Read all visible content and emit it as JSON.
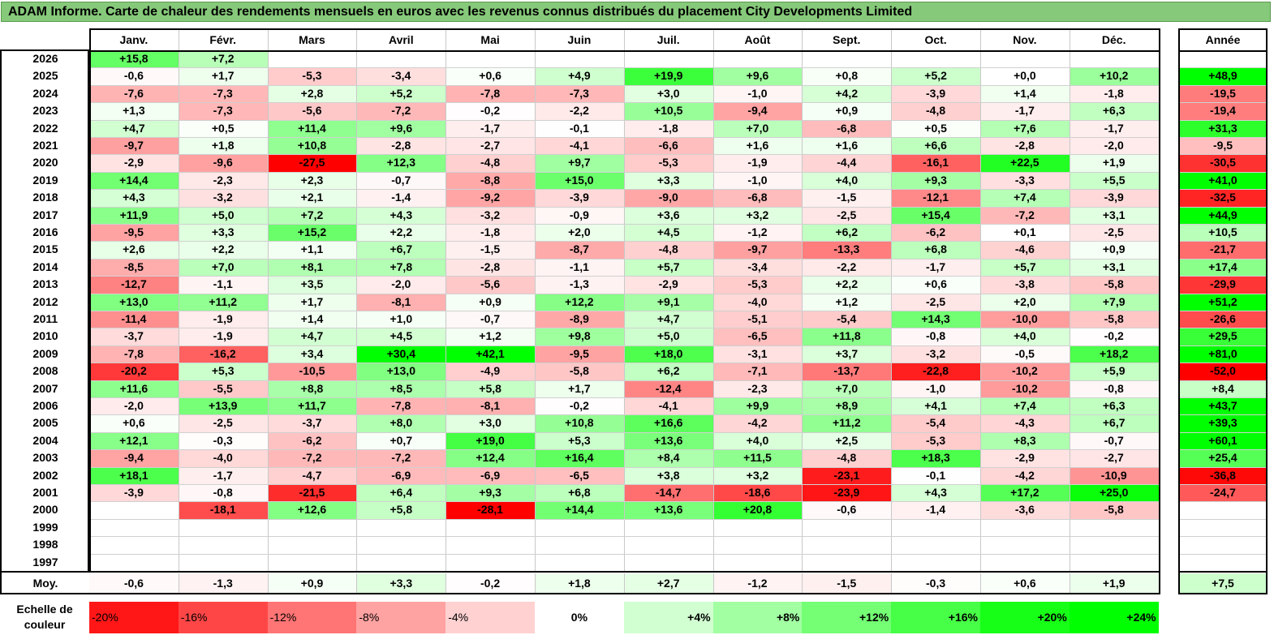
{
  "title": "ADAM Informe. Carte de chaleur des rendements mensuels en euros avec les revenus connus distribués du placement City Developments Limited",
  "chart_data": {
    "type": "heatmap",
    "title": "ADAM Informe. Carte de chaleur des rendements mensuels en euros avec les revenus connus distribués du placement City Developments Limited",
    "months": [
      "Janv.",
      "Févr.",
      "Mars",
      "Avril",
      "Mai",
      "Juin",
      "Juil.",
      "Août",
      "Sept.",
      "Oct.",
      "Nov.",
      "Déc."
    ],
    "year_header": "Année",
    "rows": [
      {
        "year": "2026",
        "values": [
          "+15,8",
          "+7,2",
          "",
          "",
          "",
          "",
          "",
          "",
          "",
          "",
          "",
          ""
        ],
        "annual": ""
      },
      {
        "year": "2025",
        "values": [
          "-0,6",
          "+1,7",
          "-5,3",
          "-3,4",
          "+0,6",
          "+4,9",
          "+19,9",
          "+9,6",
          "+0,8",
          "+5,2",
          "+0,0",
          "+10,2"
        ],
        "annual": "+48,9"
      },
      {
        "year": "2024",
        "values": [
          "-7,6",
          "-7,3",
          "+2,8",
          "+5,2",
          "-7,8",
          "-7,3",
          "+3,0",
          "-1,0",
          "+4,2",
          "-3,9",
          "+1,4",
          "-1,8"
        ],
        "annual": "-19,5"
      },
      {
        "year": "2023",
        "values": [
          "+1,3",
          "-7,3",
          "-5,6",
          "-7,2",
          "-0,2",
          "-2,2",
          "+10,5",
          "-9,4",
          "+0,9",
          "-4,8",
          "-1,7",
          "+6,3"
        ],
        "annual": "-19,4"
      },
      {
        "year": "2022",
        "values": [
          "+4,7",
          "+0,5",
          "+11,4",
          "+9,6",
          "-1,7",
          "-0,1",
          "-1,8",
          "+7,0",
          "-6,8",
          "+0,5",
          "+7,6",
          "-1,7"
        ],
        "annual": "+31,3"
      },
      {
        "year": "2021",
        "values": [
          "-9,7",
          "+1,8",
          "+10,8",
          "-2,8",
          "-2,7",
          "-4,1",
          "-6,6",
          "+1,6",
          "+1,6",
          "+6,6",
          "-2,8",
          "-2,0"
        ],
        "annual": "-9,5"
      },
      {
        "year": "2020",
        "values": [
          "-2,9",
          "-9,6",
          "-27,5",
          "+12,3",
          "-4,8",
          "+9,7",
          "-5,3",
          "-1,9",
          "-4,4",
          "-16,1",
          "+22,5",
          "+1,9"
        ],
        "annual": "-30,5"
      },
      {
        "year": "2019",
        "values": [
          "+14,4",
          "-2,3",
          "+2,3",
          "-0,7",
          "-8,8",
          "+15,0",
          "+3,3",
          "-1,0",
          "+4,0",
          "+9,3",
          "-3,3",
          "+5,5"
        ],
        "annual": "+41,0"
      },
      {
        "year": "2018",
        "values": [
          "+4,3",
          "-3,2",
          "+2,1",
          "-1,4",
          "-9,2",
          "-3,9",
          "-9,0",
          "-6,8",
          "-1,5",
          "-12,1",
          "+7,4",
          "-3,9"
        ],
        "annual": "-32,5"
      },
      {
        "year": "2017",
        "values": [
          "+11,9",
          "+5,0",
          "+7,2",
          "+4,3",
          "-3,2",
          "-0,9",
          "+3,6",
          "+3,2",
          "-2,5",
          "+15,4",
          "-7,2",
          "+3,1"
        ],
        "annual": "+44,9"
      },
      {
        "year": "2016",
        "values": [
          "-9,5",
          "+3,3",
          "+15,2",
          "+2,2",
          "-1,8",
          "+2,0",
          "+4,5",
          "-1,2",
          "+6,2",
          "-6,2",
          "+0,1",
          "-2,5"
        ],
        "annual": "+10,5"
      },
      {
        "year": "2015",
        "values": [
          "+2,6",
          "+2,2",
          "+1,1",
          "+6,7",
          "-1,5",
          "-8,7",
          "-4,8",
          "-9,7",
          "-13,3",
          "+6,8",
          "-4,6",
          "+0,9"
        ],
        "annual": "-21,7"
      },
      {
        "year": "2014",
        "values": [
          "-8,5",
          "+7,0",
          "+8,1",
          "+7,8",
          "-2,8",
          "-1,1",
          "+5,7",
          "-3,4",
          "-2,2",
          "-1,7",
          "+5,7",
          "+3,1"
        ],
        "annual": "+17,4"
      },
      {
        "year": "2013",
        "values": [
          "-12,7",
          "-1,1",
          "+3,5",
          "-2,0",
          "-5,6",
          "-1,3",
          "-2,9",
          "-5,3",
          "+2,2",
          "+0,6",
          "-3,8",
          "-5,8"
        ],
        "annual": "-29,9"
      },
      {
        "year": "2012",
        "values": [
          "+13,0",
          "+11,2",
          "+1,7",
          "-8,1",
          "+0,9",
          "+12,2",
          "+9,1",
          "-4,0",
          "+1,2",
          "-2,5",
          "+2,0",
          "+7,9"
        ],
        "annual": "+51,2"
      },
      {
        "year": "2011",
        "values": [
          "-11,4",
          "-1,9",
          "+1,4",
          "+1,0",
          "-0,7",
          "-8,9",
          "+4,7",
          "-5,1",
          "-5,4",
          "+14,3",
          "-10,0",
          "-5,8"
        ],
        "annual": "-26,6"
      },
      {
        "year": "2010",
        "values": [
          "-3,7",
          "-1,9",
          "+4,7",
          "+4,5",
          "+1,2",
          "+9,8",
          "+5,0",
          "-6,5",
          "+11,8",
          "-0,8",
          "+4,0",
          "-0,2"
        ],
        "annual": "+29,5"
      },
      {
        "year": "2009",
        "values": [
          "-7,8",
          "-16,2",
          "+3,4",
          "+30,4",
          "+42,1",
          "-9,5",
          "+18,0",
          "-3,1",
          "+3,7",
          "-3,2",
          "-0,5",
          "+18,2"
        ],
        "annual": "+81,0"
      },
      {
        "year": "2008",
        "values": [
          "-20,2",
          "+5,3",
          "-10,5",
          "+13,0",
          "-4,9",
          "-5,8",
          "+6,2",
          "-7,1",
          "-13,7",
          "-22,8",
          "-10,2",
          "+5,9"
        ],
        "annual": "-52,0"
      },
      {
        "year": "2007",
        "values": [
          "+11,6",
          "-5,5",
          "+8,8",
          "+8,5",
          "+5,8",
          "+1,7",
          "-12,4",
          "-2,3",
          "+7,0",
          "-1,0",
          "-10,2",
          "-0,8"
        ],
        "annual": "+8,4"
      },
      {
        "year": "2006",
        "values": [
          "-2,0",
          "+13,9",
          "+11,7",
          "-7,8",
          "-8,1",
          "-0,2",
          "-4,1",
          "+9,9",
          "+8,9",
          "+4,1",
          "+7,4",
          "+6,3"
        ],
        "annual": "+43,7"
      },
      {
        "year": "2005",
        "values": [
          "+0,6",
          "-2,5",
          "-3,7",
          "+8,0",
          "+3,0",
          "+10,8",
          "+16,6",
          "-4,2",
          "+11,2",
          "-5,4",
          "-4,3",
          "+6,7"
        ],
        "annual": "+39,3"
      },
      {
        "year": "2004",
        "values": [
          "+12,1",
          "-0,3",
          "-6,2",
          "+0,7",
          "+19,0",
          "+5,3",
          "+13,6",
          "+4,0",
          "+2,5",
          "-5,3",
          "+8,3",
          "-0,7"
        ],
        "annual": "+60,1"
      },
      {
        "year": "2003",
        "values": [
          "-9,4",
          "-4,0",
          "-7,2",
          "-7,2",
          "+12,4",
          "+16,4",
          "+8,4",
          "+11,5",
          "-4,8",
          "+18,3",
          "-2,9",
          "-2,7"
        ],
        "annual": "+25,4"
      },
      {
        "year": "2002",
        "values": [
          "+18,1",
          "-1,7",
          "-4,7",
          "-6,9",
          "-6,9",
          "-6,5",
          "+3,8",
          "+3,2",
          "-23,1",
          "-0,1",
          "-4,2",
          "-10,9"
        ],
        "annual": "-36,8"
      },
      {
        "year": "2001",
        "values": [
          "-3,9",
          "-0,8",
          "-21,5",
          "+6,4",
          "+9,3",
          "+6,8",
          "-14,7",
          "-18,6",
          "-23,9",
          "+4,3",
          "+17,2",
          "+25,0"
        ],
        "annual": "-24,7"
      },
      {
        "year": "2000",
        "values": [
          "",
          "-18,1",
          "+12,6",
          "+5,8",
          "-28,1",
          "+14,4",
          "+13,6",
          "+20,8",
          "-0,6",
          "-1,4",
          "-3,6",
          "-5,8"
        ],
        "annual": ""
      },
      {
        "year": "1999",
        "values": [
          "",
          "",
          "",
          "",
          "",
          "",
          "",
          "",
          "",
          "",
          "",
          ""
        ],
        "annual": ""
      },
      {
        "year": "1998",
        "values": [
          "",
          "",
          "",
          "",
          "",
          "",
          "",
          "",
          "",
          "",
          "",
          ""
        ],
        "annual": ""
      },
      {
        "year": "1997",
        "values": [
          "",
          "",
          "",
          "",
          "",
          "",
          "",
          "",
          "",
          "",
          "",
          ""
        ],
        "annual": ""
      }
    ],
    "average": {
      "label": "Moy.",
      "values": [
        "-0,6",
        "-1,3",
        "+0,9",
        "+3,3",
        "-0,2",
        "+1,8",
        "+2,7",
        "-1,2",
        "-1,5",
        "-0,3",
        "+0,6",
        "+1,9"
      ],
      "annual": "+7,5"
    },
    "scale": {
      "label": "Echelle de couleur",
      "stops": [
        "-20%",
        "-16%",
        "-12%",
        "-8%",
        "-4%",
        "0%",
        "+4%",
        "+8%",
        "+12%",
        "+16%",
        "+20%",
        "+24%"
      ]
    },
    "colors": {
      "negative": "#ff0000",
      "positive": "#00ff00",
      "neutral": "#ffffff",
      "title_bg": "#86c97a"
    }
  }
}
